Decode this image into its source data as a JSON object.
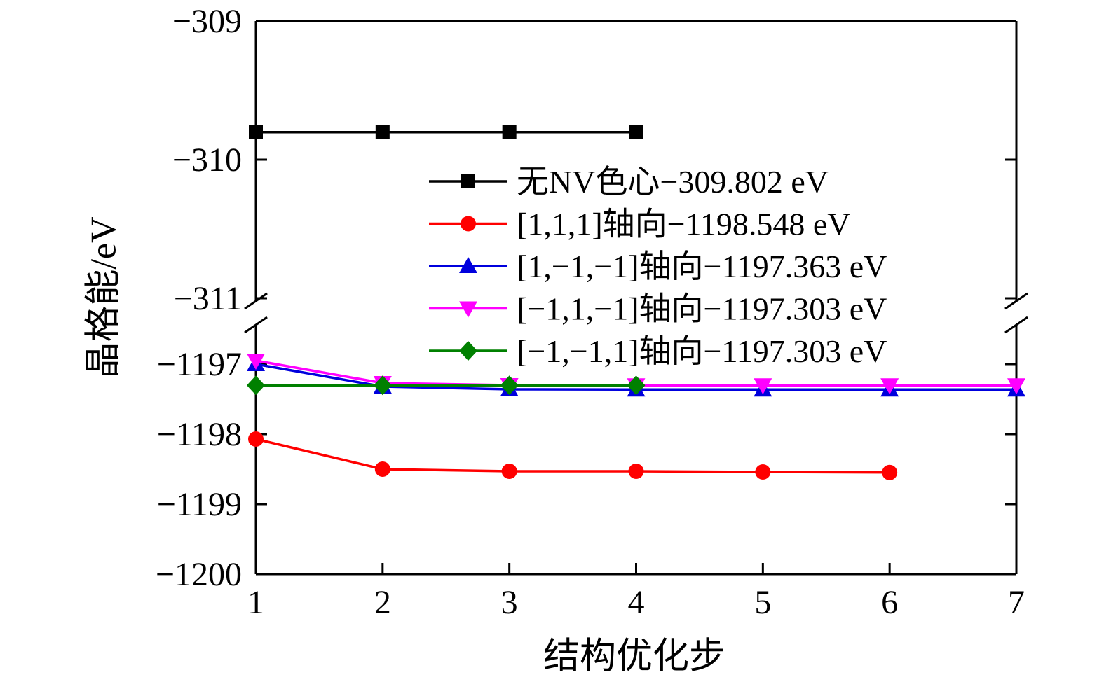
{
  "figure": {
    "background": "#ffffff"
  },
  "chart_data": {
    "type": "line",
    "title": "",
    "xlabel": "结构优化步",
    "ylabel": "晶格能/eV",
    "xlim": [
      1,
      7
    ],
    "x_ticks": [
      1,
      2,
      3,
      4,
      5,
      6,
      7
    ],
    "x_tick_labels": [
      "1",
      "2",
      "3",
      "4",
      "5",
      "6",
      "7"
    ],
    "grid": false,
    "y_axis": {
      "broken": true,
      "top_range": [
        -309,
        -311
      ],
      "top_ticks": [
        -309,
        -310,
        -311
      ],
      "top_tick_labels": [
        "−309",
        "−310",
        "−311"
      ],
      "bottom_ticks": [
        -1197,
        -1198,
        -1199,
        -1200
      ],
      "bottom_tick_labels": [
        "−1197",
        "−1198",
        "−1199",
        "−1200"
      ]
    },
    "legend": {
      "position": "upper-center-inside",
      "border": false
    },
    "series": [
      {
        "name": "无NV色心−309.802 eV",
        "color": "#000000",
        "marker": "square",
        "x": [
          1,
          2,
          3,
          4
        ],
        "y": [
          -309.802,
          -309.802,
          -309.802,
          -309.802
        ]
      },
      {
        "name": "[1,1,1]轴向−1198.548 eV",
        "color": "#ff0000",
        "marker": "circle",
        "x": [
          1,
          2,
          3,
          4,
          5,
          6
        ],
        "y": [
          -1198.07,
          -1198.5,
          -1198.53,
          -1198.53,
          -1198.54,
          -1198.548
        ]
      },
      {
        "name": "[1,−1,−1]轴向−1197.363 eV",
        "color": "#0000dd",
        "marker": "triangle-up",
        "x": [
          1,
          2,
          3,
          4,
          5,
          6,
          7
        ],
        "y": [
          -1197.0,
          -1197.32,
          -1197.36,
          -1197.363,
          -1197.363,
          -1197.363,
          -1197.363
        ]
      },
      {
        "name": "[−1,1,−1]轴向−1197.303 eV",
        "color": "#ff00ff",
        "marker": "triangle-down",
        "x": [
          1,
          2,
          3,
          4,
          5,
          6,
          7
        ],
        "y": [
          -1196.95,
          -1197.27,
          -1197.3,
          -1197.303,
          -1197.303,
          -1197.303,
          -1197.303
        ]
      },
      {
        "name": "[−1,−1,1]轴向−1197.303 eV",
        "color": "#008000",
        "marker": "diamond",
        "x": [
          1,
          2,
          3,
          4
        ],
        "y": [
          -1197.303,
          -1197.303,
          -1197.303,
          -1197.303
        ]
      }
    ]
  }
}
